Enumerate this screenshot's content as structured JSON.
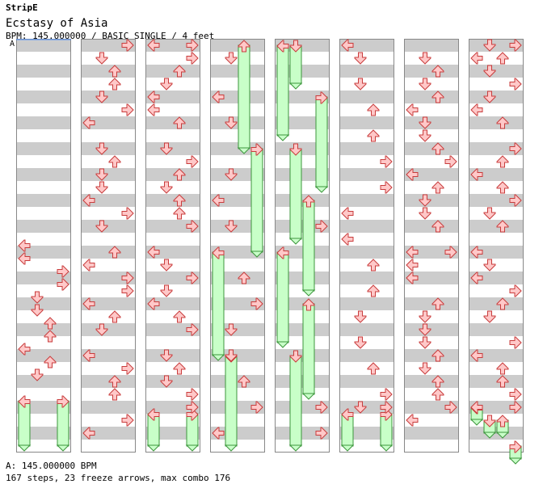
{
  "header": {
    "artist": "StripE",
    "title": "Ecstasy of Asia",
    "info": "BPM: 145.000000 / BASIC SINGLE / 4 feet"
  },
  "chart_data": {
    "type": "step_chart",
    "bpm_marker": "A",
    "bpm_legend": "A: 145.000000 BPM",
    "summary": "167 steps, 23 freeze arrows, max combo 176",
    "lanes": [
      "left",
      "down",
      "up",
      "right"
    ],
    "colors": {
      "arrow_fill": "#ffc8c8",
      "arrow_stroke": "#c83c3c",
      "freeze_fill": "#c8ffc8",
      "freeze_stroke": "#3c963c",
      "stripe": "#cccccc"
    },
    "measures_per_column": 8,
    "rows_per_measure": 8,
    "columns": [
      {
        "notes": [],
        "freezes": [
          {
            "lane": 0,
            "start": 7.0,
            "end": 7.875
          },
          {
            "lane": 3,
            "start": 7.0,
            "end": 7.875
          }
        ],
        "extra_notes": [
          {
            "lane": 0,
            "pos": 4.0
          },
          {
            "lane": 0,
            "pos": 4.25
          },
          {
            "lane": 3,
            "pos": 4.5
          },
          {
            "lane": 3,
            "pos": 4.75
          },
          {
            "lane": 1,
            "pos": 5.0
          },
          {
            "lane": 1,
            "pos": 5.25
          },
          {
            "lane": 2,
            "pos": 5.5
          },
          {
            "lane": 2,
            "pos": 5.75
          },
          {
            "lane": 0,
            "pos": 6.0
          },
          {
            "lane": 2,
            "pos": 6.25
          },
          {
            "lane": 1,
            "pos": 6.5
          }
        ]
      },
      {
        "notes": [
          {
            "lane": 3,
            "pos": 0.125
          },
          {
            "lane": 1,
            "pos": 0.375
          },
          {
            "lane": 2,
            "pos": 0.625
          },
          {
            "lane": 2,
            "pos": 0.875
          },
          {
            "lane": 1,
            "pos": 1.125
          },
          {
            "lane": 3,
            "pos": 1.375
          },
          {
            "lane": 0,
            "pos": 1.625
          },
          {
            "lane": 1,
            "pos": 2.125
          },
          {
            "lane": 2,
            "pos": 2.375
          },
          {
            "lane": 1,
            "pos": 2.625
          },
          {
            "lane": 1,
            "pos": 2.875
          },
          {
            "lane": 0,
            "pos": 3.125
          },
          {
            "lane": 3,
            "pos": 3.375
          },
          {
            "lane": 1,
            "pos": 3.625
          },
          {
            "lane": 2,
            "pos": 4.125
          },
          {
            "lane": 0,
            "pos": 4.375
          },
          {
            "lane": 3,
            "pos": 4.625
          },
          {
            "lane": 3,
            "pos": 4.875
          },
          {
            "lane": 0,
            "pos": 5.125
          },
          {
            "lane": 2,
            "pos": 5.375
          },
          {
            "lane": 1,
            "pos": 5.625
          },
          {
            "lane": 0,
            "pos": 6.125
          },
          {
            "lane": 3,
            "pos": 6.375
          },
          {
            "lane": 2,
            "pos": 6.625
          },
          {
            "lane": 2,
            "pos": 6.875
          },
          {
            "lane": 3,
            "pos": 7.375
          },
          {
            "lane": 0,
            "pos": 7.625
          }
        ],
        "freezes": []
      },
      {
        "notes": [
          {
            "lane": 0,
            "pos": 0.125
          },
          {
            "lane": 3,
            "pos": 0.125
          },
          {
            "lane": 3,
            "pos": 0.375
          },
          {
            "lane": 2,
            "pos": 0.625
          },
          {
            "lane": 1,
            "pos": 0.875
          },
          {
            "lane": 0,
            "pos": 1.125
          },
          {
            "lane": 0,
            "pos": 1.375
          },
          {
            "lane": 2,
            "pos": 1.625
          },
          {
            "lane": 1,
            "pos": 2.125
          },
          {
            "lane": 3,
            "pos": 2.375
          },
          {
            "lane": 2,
            "pos": 2.625
          },
          {
            "lane": 1,
            "pos": 2.875
          },
          {
            "lane": 2,
            "pos": 3.125
          },
          {
            "lane": 2,
            "pos": 3.375
          },
          {
            "lane": 3,
            "pos": 3.625
          },
          {
            "lane": 0,
            "pos": 4.125
          },
          {
            "lane": 1,
            "pos": 4.375
          },
          {
            "lane": 3,
            "pos": 4.625
          },
          {
            "lane": 1,
            "pos": 4.875
          },
          {
            "lane": 0,
            "pos": 5.125
          },
          {
            "lane": 2,
            "pos": 5.375
          },
          {
            "lane": 3,
            "pos": 5.625
          },
          {
            "lane": 1,
            "pos": 6.125
          },
          {
            "lane": 2,
            "pos": 6.375
          },
          {
            "lane": 1,
            "pos": 6.625
          },
          {
            "lane": 3,
            "pos": 6.875
          },
          {
            "lane": 3,
            "pos": 7.125
          }
        ],
        "freezes": [
          {
            "lane": 0,
            "start": 7.25,
            "end": 7.875
          },
          {
            "lane": 3,
            "start": 7.25,
            "end": 7.875
          }
        ]
      },
      {
        "notes": [
          {
            "lane": 0,
            "pos": 1.125
          },
          {
            "lane": 1,
            "pos": 0.375
          },
          {
            "lane": 1,
            "pos": 1.625
          },
          {
            "lane": 1,
            "pos": 2.625
          },
          {
            "lane": 0,
            "pos": 3.125
          },
          {
            "lane": 1,
            "pos": 3.625
          },
          {
            "lane": 2,
            "pos": 4.625
          },
          {
            "lane": 3,
            "pos": 5.125
          },
          {
            "lane": 1,
            "pos": 5.625
          },
          {
            "lane": 1,
            "pos": 6.125
          },
          {
            "lane": 2,
            "pos": 6.625
          },
          {
            "lane": 3,
            "pos": 7.125
          },
          {
            "lane": 0,
            "pos": 7.625
          }
        ],
        "freezes": [
          {
            "lane": 2,
            "start": 0.125,
            "end": 2.125
          },
          {
            "lane": 3,
            "start": 2.125,
            "end": 4.125
          },
          {
            "lane": 0,
            "start": 4.125,
            "end": 6.125
          },
          {
            "lane": 1,
            "start": 6.125,
            "end": 7.875
          }
        ]
      },
      {
        "notes": [
          {
            "lane": 3,
            "pos": 3.625
          },
          {
            "lane": 3,
            "pos": 7.125
          },
          {
            "lane": 3,
            "pos": 7.625
          }
        ],
        "freezes": [
          {
            "lane": 0,
            "start": 0.125,
            "end": 1.875
          },
          {
            "lane": 1,
            "start": 0.125,
            "end": 0.875
          },
          {
            "lane": 3,
            "start": 1.125,
            "end": 2.875
          },
          {
            "lane": 1,
            "start": 2.125,
            "end": 3.875
          },
          {
            "lane": 2,
            "start": 3.125,
            "end": 4.875
          },
          {
            "lane": 0,
            "start": 4.125,
            "end": 5.875
          },
          {
            "lane": 2,
            "start": 5.125,
            "end": 6.875
          },
          {
            "lane": 1,
            "start": 6.125,
            "end": 7.875
          }
        ]
      },
      {
        "notes": [
          {
            "lane": 0,
            "pos": 0.125
          },
          {
            "lane": 1,
            "pos": 0.375
          },
          {
            "lane": 1,
            "pos": 0.875
          },
          {
            "lane": 2,
            "pos": 1.375
          },
          {
            "lane": 2,
            "pos": 1.875
          },
          {
            "lane": 3,
            "pos": 2.375
          },
          {
            "lane": 3,
            "pos": 2.875
          },
          {
            "lane": 0,
            "pos": 3.375
          },
          {
            "lane": 0,
            "pos": 3.875
          },
          {
            "lane": 2,
            "pos": 4.375
          },
          {
            "lane": 2,
            "pos": 4.875
          },
          {
            "lane": 1,
            "pos": 5.375
          },
          {
            "lane": 1,
            "pos": 5.875
          },
          {
            "lane": 2,
            "pos": 6.375
          },
          {
            "lane": 3,
            "pos": 6.875
          },
          {
            "lane": 1,
            "pos": 7.125
          },
          {
            "lane": 3,
            "pos": 7.125
          }
        ],
        "freezes": [
          {
            "lane": 0,
            "start": 7.25,
            "end": 7.875
          },
          {
            "lane": 3,
            "start": 7.25,
            "end": 7.875
          }
        ]
      },
      {
        "notes": [
          {
            "lane": 1,
            "pos": 0.375
          },
          {
            "lane": 2,
            "pos": 0.625
          },
          {
            "lane": 1,
            "pos": 0.875
          },
          {
            "lane": 2,
            "pos": 1.125
          },
          {
            "lane": 0,
            "pos": 1.375
          },
          {
            "lane": 1,
            "pos": 1.625
          },
          {
            "lane": 1,
            "pos": 1.875
          },
          {
            "lane": 2,
            "pos": 2.125
          },
          {
            "lane": 3,
            "pos": 2.375
          },
          {
            "lane": 0,
            "pos": 2.625
          },
          {
            "lane": 2,
            "pos": 2.875
          },
          {
            "lane": 1,
            "pos": 3.125
          },
          {
            "lane": 1,
            "pos": 3.375
          },
          {
            "lane": 2,
            "pos": 3.625
          },
          {
            "lane": 0,
            "pos": 4.125
          },
          {
            "lane": 3,
            "pos": 4.125
          },
          {
            "lane": 0,
            "pos": 4.375
          },
          {
            "lane": 0,
            "pos": 4.625
          },
          {
            "lane": 2,
            "pos": 5.125
          },
          {
            "lane": 1,
            "pos": 5.375
          },
          {
            "lane": 1,
            "pos": 5.625
          },
          {
            "lane": 1,
            "pos": 5.875
          },
          {
            "lane": 2,
            "pos": 6.125
          },
          {
            "lane": 1,
            "pos": 6.375
          },
          {
            "lane": 2,
            "pos": 6.625
          },
          {
            "lane": 2,
            "pos": 6.875
          },
          {
            "lane": 3,
            "pos": 7.125
          },
          {
            "lane": 0,
            "pos": 7.375
          }
        ],
        "freezes": []
      },
      {
        "notes": [
          {
            "lane": 1,
            "pos": 0.125
          },
          {
            "lane": 3,
            "pos": 0.125
          },
          {
            "lane": 0,
            "pos": 0.375
          },
          {
            "lane": 2,
            "pos": 0.375
          },
          {
            "lane": 1,
            "pos": 0.625
          },
          {
            "lane": 3,
            "pos": 0.875
          },
          {
            "lane": 1,
            "pos": 1.125
          },
          {
            "lane": 0,
            "pos": 1.375
          },
          {
            "lane": 2,
            "pos": 1.625
          },
          {
            "lane": 3,
            "pos": 2.125
          },
          {
            "lane": 2,
            "pos": 2.375
          },
          {
            "lane": 0,
            "pos": 2.625
          },
          {
            "lane": 2,
            "pos": 2.875
          },
          {
            "lane": 3,
            "pos": 3.125
          },
          {
            "lane": 1,
            "pos": 3.375
          },
          {
            "lane": 2,
            "pos": 3.625
          },
          {
            "lane": 0,
            "pos": 4.125
          },
          {
            "lane": 1,
            "pos": 4.375
          },
          {
            "lane": 0,
            "pos": 4.625
          },
          {
            "lane": 3,
            "pos": 4.875
          },
          {
            "lane": 2,
            "pos": 5.125
          },
          {
            "lane": 1,
            "pos": 5.375
          },
          {
            "lane": 3,
            "pos": 5.875
          },
          {
            "lane": 0,
            "pos": 6.125
          },
          {
            "lane": 2,
            "pos": 6.375
          },
          {
            "lane": 2,
            "pos": 6.625
          },
          {
            "lane": 3,
            "pos": 6.875
          },
          {
            "lane": 0,
            "pos": 7.125
          },
          {
            "lane": 3,
            "pos": 7.125
          }
        ],
        "freezes": [
          {
            "lane": 0,
            "start": 7.125,
            "end": 7.375
          },
          {
            "lane": 1,
            "start": 7.375,
            "end": 7.625
          },
          {
            "lane": 2,
            "start": 7.375,
            "end": 7.625
          },
          {
            "lane": 3,
            "start": 7.875,
            "end": 8.125
          }
        ]
      }
    ]
  }
}
